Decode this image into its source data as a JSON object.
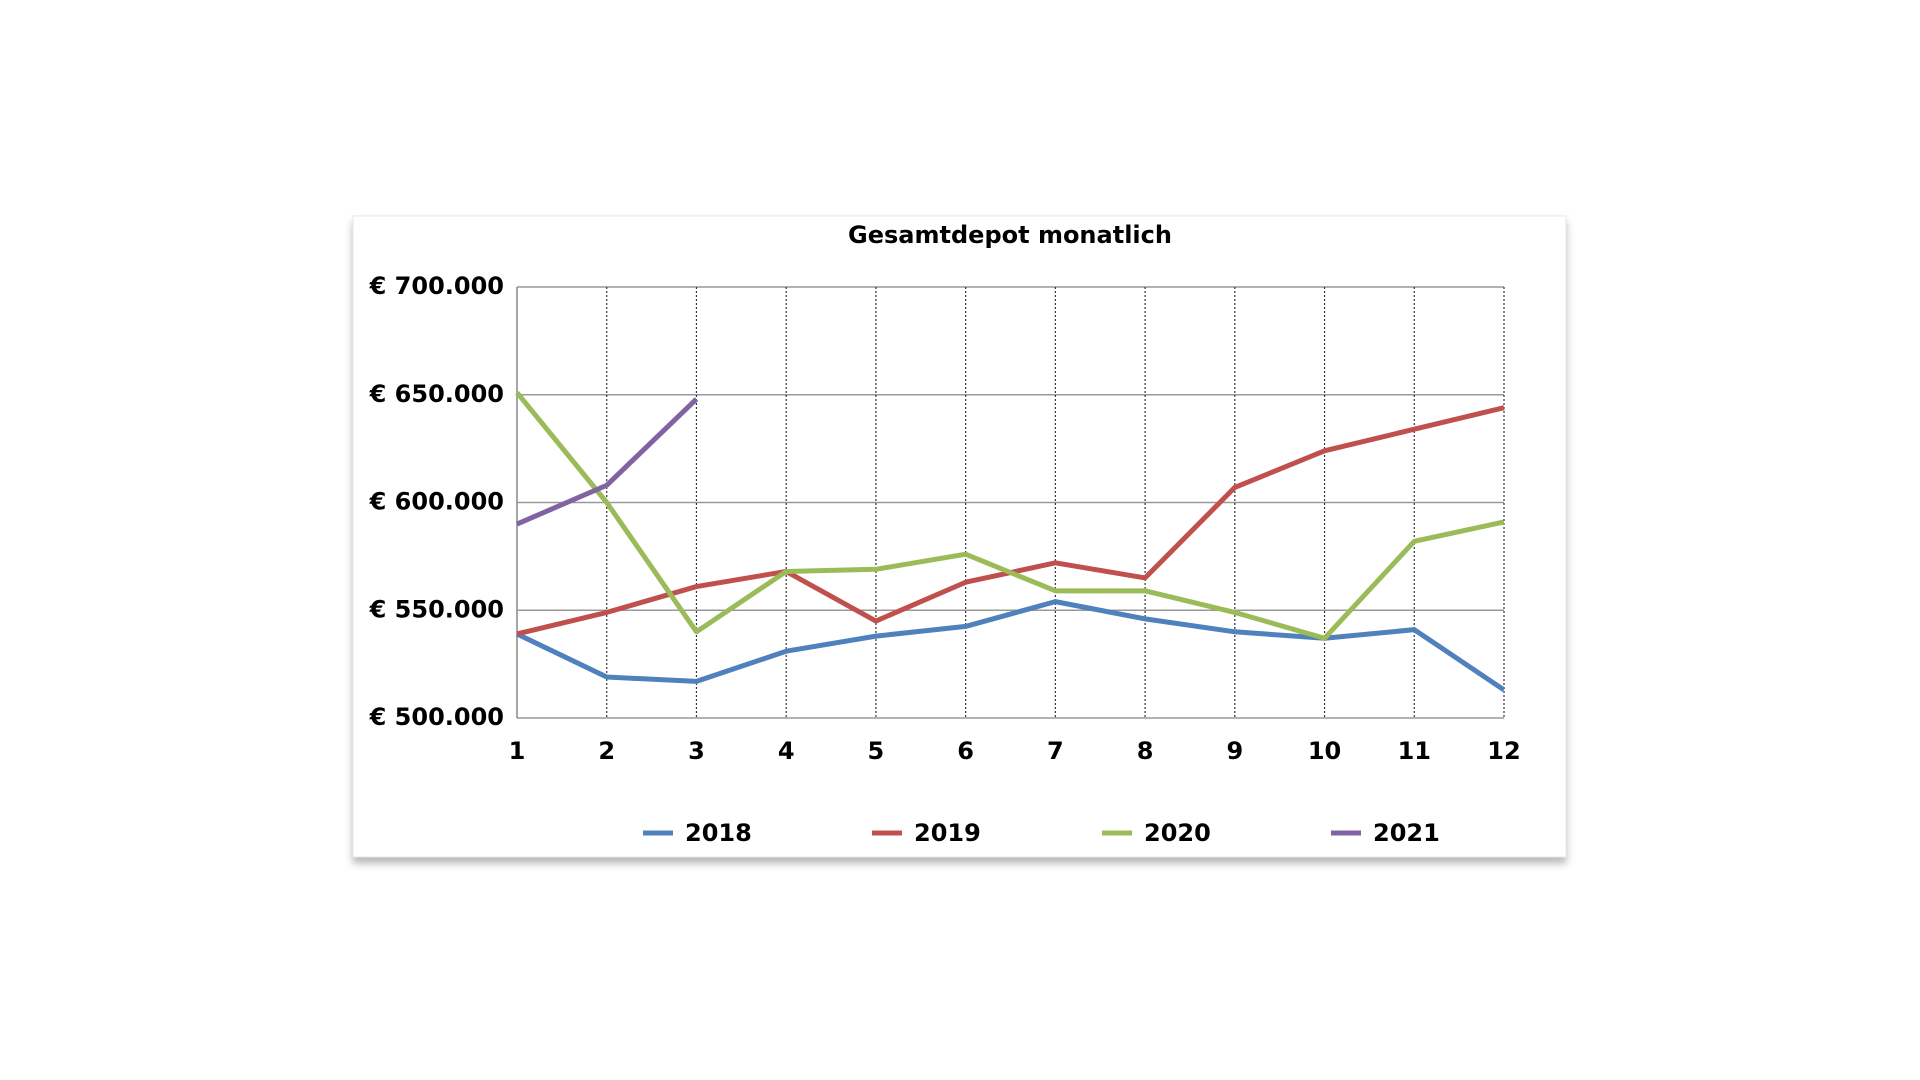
{
  "chart_data": {
    "type": "line",
    "title": "Gesamtdepot monatlich",
    "x": [
      1,
      2,
      3,
      4,
      5,
      6,
      7,
      8,
      9,
      10,
      11,
      12
    ],
    "xlim": [
      1,
      12
    ],
    "xticks": [
      1,
      2,
      3,
      4,
      5,
      6,
      7,
      8,
      9,
      10,
      11,
      12
    ],
    "ylim": [
      500000,
      700000
    ],
    "yticks": [
      {
        "value": 500000,
        "label": "€ 500.000"
      },
      {
        "value": 550000,
        "label": "€ 550.000"
      },
      {
        "value": 600000,
        "label": "€ 600.000"
      },
      {
        "value": 650000,
        "label": "€ 650.000"
      },
      {
        "value": 700000,
        "label": "€ 700.000"
      }
    ],
    "grid": true,
    "legend": "bottom",
    "series": [
      {
        "name": "2018",
        "color": "#4f81bd",
        "values": [
          539000,
          519000,
          517000,
          531000,
          538000,
          542500,
          554000,
          546000,
          540000,
          537000,
          541000,
          513000
        ]
      },
      {
        "name": "2019",
        "color": "#c0504d",
        "values": [
          539000,
          549000,
          561000,
          568000,
          545000,
          563000,
          572000,
          565000,
          607000,
          624000,
          634000,
          644000
        ]
      },
      {
        "name": "2020",
        "color": "#9bbb59",
        "values": [
          651000,
          600000,
          540000,
          568000,
          569000,
          576000,
          559000,
          559000,
          549000,
          537000,
          582000,
          591000
        ]
      },
      {
        "name": "2021",
        "color": "#8064a2",
        "values": [
          590000,
          608000,
          648000,
          null,
          null,
          null,
          null,
          null,
          null,
          null,
          null,
          null
        ]
      }
    ]
  }
}
